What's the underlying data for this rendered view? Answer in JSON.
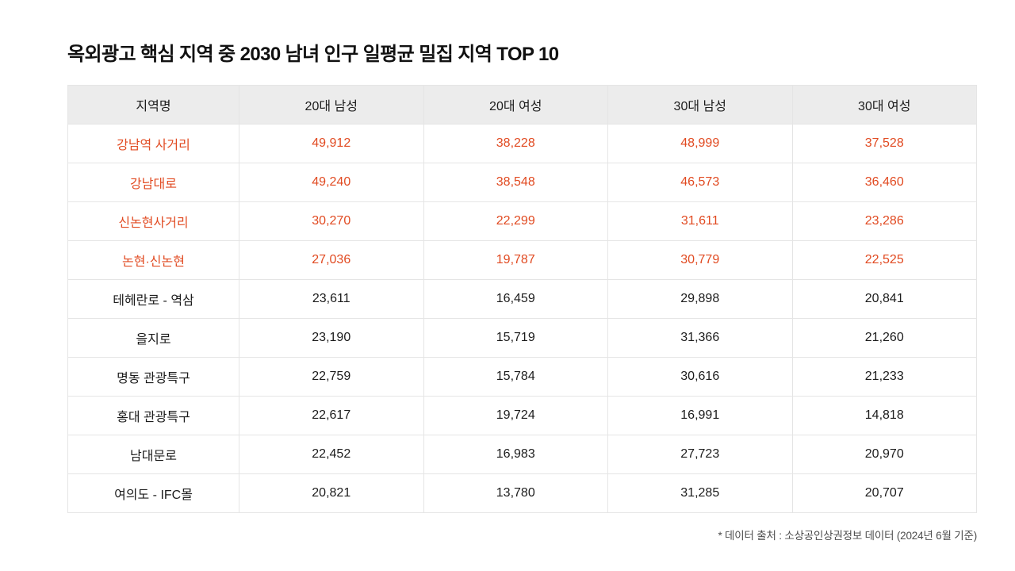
{
  "page": {
    "title": "옥외광고 핵심 지역 중 2030 남녀 인구 일평균 밀집 지역 TOP 10",
    "footnote": "* 데이터 출처 :  소상공인상권정보 데이터 (2024년 6월 기준)"
  },
  "table": {
    "columns": [
      "지역명",
      "20대 남성",
      "20대 여성",
      "30대 남성",
      "30대 여성"
    ],
    "rows": [
      {
        "region": "강남역 사거리",
        "values": [
          "49,912",
          "38,228",
          "48,999",
          "37,528"
        ],
        "highlight": true
      },
      {
        "region": "강남대로",
        "values": [
          "49,240",
          "38,548",
          "46,573",
          "36,460"
        ],
        "highlight": true
      },
      {
        "region": "신논현사거리",
        "values": [
          "30,270",
          "22,299",
          "31,611",
          "23,286"
        ],
        "highlight": true
      },
      {
        "region": "논현·신논현",
        "values": [
          "27,036",
          "19,787",
          "30,779",
          "22,525"
        ],
        "highlight": true
      },
      {
        "region": "테헤란로 - 역삼",
        "values": [
          "23,611",
          "16,459",
          "29,898",
          "20,841"
        ],
        "highlight": false
      },
      {
        "region": "을지로",
        "values": [
          "23,190",
          "15,719",
          "31,366",
          "21,260"
        ],
        "highlight": false
      },
      {
        "region": "명동 관광특구",
        "values": [
          "22,759",
          "15,784",
          "30,616",
          "21,233"
        ],
        "highlight": false
      },
      {
        "region": "홍대 관광특구",
        "values": [
          "22,617",
          "19,724",
          "16,991",
          "14,818"
        ],
        "highlight": false
      },
      {
        "region": "남대문로",
        "values": [
          "22,452",
          "16,983",
          "27,723",
          "20,970"
        ],
        "highlight": false
      },
      {
        "region": "여의도 - IFC몰",
        "values": [
          "20,821",
          "13,780",
          "31,285",
          "20,707"
        ],
        "highlight": false
      }
    ]
  },
  "colors": {
    "highlight_text": "#e14a21",
    "header_bg": "#ececec",
    "border": "#e5e5e5",
    "title_text": "#111111",
    "body_text": "#1c1c1c",
    "footnote_text": "#4d4d4d"
  },
  "chart_data": {
    "type": "table",
    "title": "옥외광고 핵심 지역 중 2030 남녀 인구 일평균 밀집 지역 TOP 10",
    "columns": [
      "지역명",
      "20대 남성",
      "20대 여성",
      "30대 남성",
      "30대 여성"
    ],
    "rows": [
      [
        "강남역 사거리",
        49912,
        38228,
        48999,
        37528
      ],
      [
        "강남대로",
        49240,
        38548,
        46573,
        36460
      ],
      [
        "신논현사거리",
        30270,
        22299,
        31611,
        23286
      ],
      [
        "논현·신논현",
        27036,
        19787,
        30779,
        22525
      ],
      [
        "테헤란로 - 역삼",
        23611,
        16459,
        29898,
        20841
      ],
      [
        "을지로",
        23190,
        15719,
        31366,
        21260
      ],
      [
        "명동 관광특구",
        22759,
        15784,
        30616,
        21233
      ],
      [
        "홍대 관광특구",
        22617,
        19724,
        16991,
        14818
      ],
      [
        "남대문로",
        22452,
        16983,
        27723,
        20970
      ],
      [
        "여의도 - IFC몰",
        20821,
        13780,
        31285,
        20707
      ]
    ],
    "highlighted_row_indices": [
      0,
      1,
      2,
      3
    ],
    "footnote": "* 데이터 출처 :  소상공인상권정보 데이터 (2024년 6월 기준)"
  }
}
